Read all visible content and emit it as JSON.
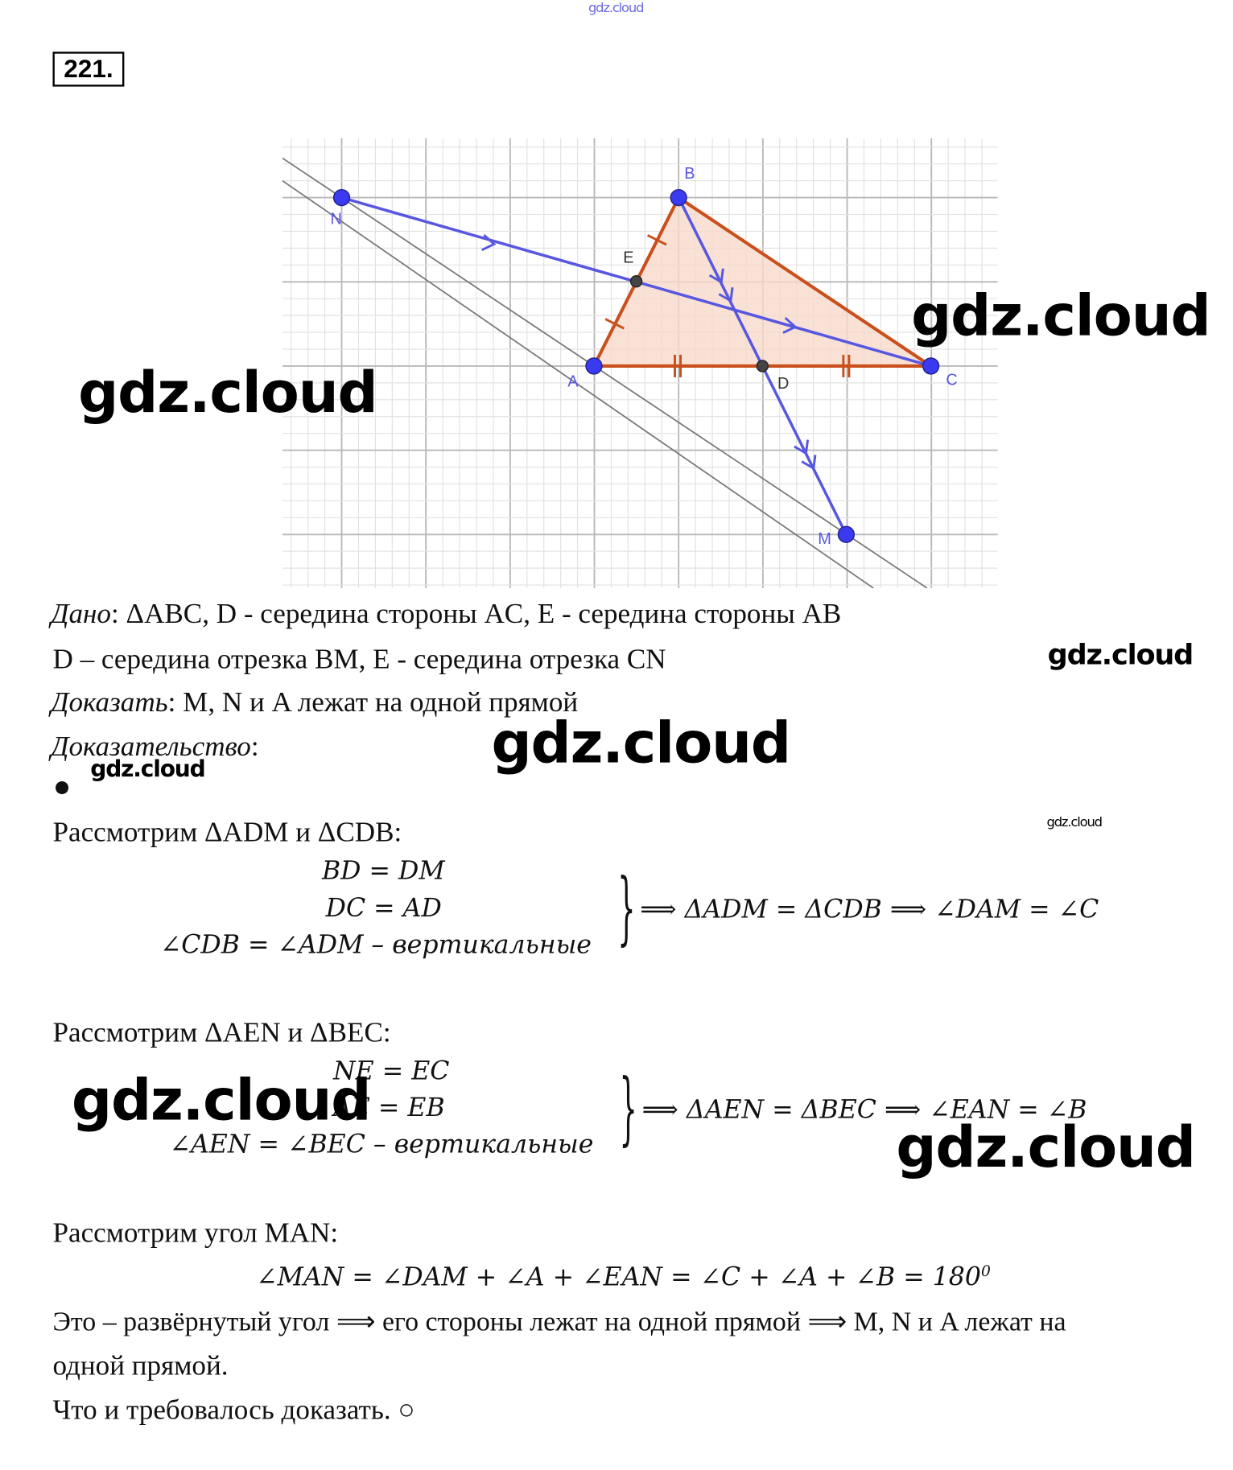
{
  "header": {
    "watermark_top": "gdz.cloud",
    "problem_number": "221."
  },
  "figure": {
    "points": {
      "A": "A",
      "B": "B",
      "C": "C",
      "D": "D",
      "E": "E",
      "M": "M",
      "N": "N"
    },
    "colors": {
      "triangle": "#c9501c",
      "fill": "#f7d9cc",
      "segments": "#5757e0",
      "aux_lines": "#777777",
      "grid": "#cfcfcf"
    }
  },
  "watermarks": [
    "gdz.cloud",
    "gdz.cloud",
    "gdz.cloud",
    "gdz.cloud",
    "gdz.cloud",
    "gdz.cloud",
    "gdz.cloud",
    "gdz.cloud"
  ],
  "given": {
    "label": "Дано",
    "line1": ": ΔABC, D - середина стороны AC, E - середина стороны AB",
    "line2": "D – середина отрезка BM, E - середина отрезка CN"
  },
  "prove": {
    "label": "Доказать",
    "text": ": M, N и A лежат на одной прямой"
  },
  "proof": {
    "label": "Доказательство",
    "colon": ":",
    "bullet": "●",
    "step1": {
      "intro": "Рассмотрим ΔADM и ΔCDB:",
      "eq1": "BD = DM",
      "eq2": "DC = AD",
      "eq3": "∠CDB = ∠ADM – вертикальные",
      "result": "⟹ ΔADM = ΔCDB ⟹ ∠DAM = ∠C"
    },
    "step2": {
      "intro": "Рассмотрим ΔAEN и ΔBEC:",
      "eq1": "NE = EC",
      "eq2": "AE = EB",
      "eq3": "∠AEN = ∠BEC – вертикальные",
      "result": "⟹ ΔAEN = ΔBEC ⟹ ∠EAN = ∠B"
    },
    "step3": {
      "intro": "Рассмотрим угол MAN:",
      "formula": "∠MAN = ∠DAM + ∠A + ∠EAN = ∠C + ∠A + ∠B = 180",
      "degree": "0",
      "conclusion1": "Это – развёрнутый угол ⟹ его стороны лежат на одной прямой ⟹ M, N и A лежат на",
      "conclusion2": "одной прямой.",
      "qed": "Что и требовалось доказать. ○"
    }
  }
}
